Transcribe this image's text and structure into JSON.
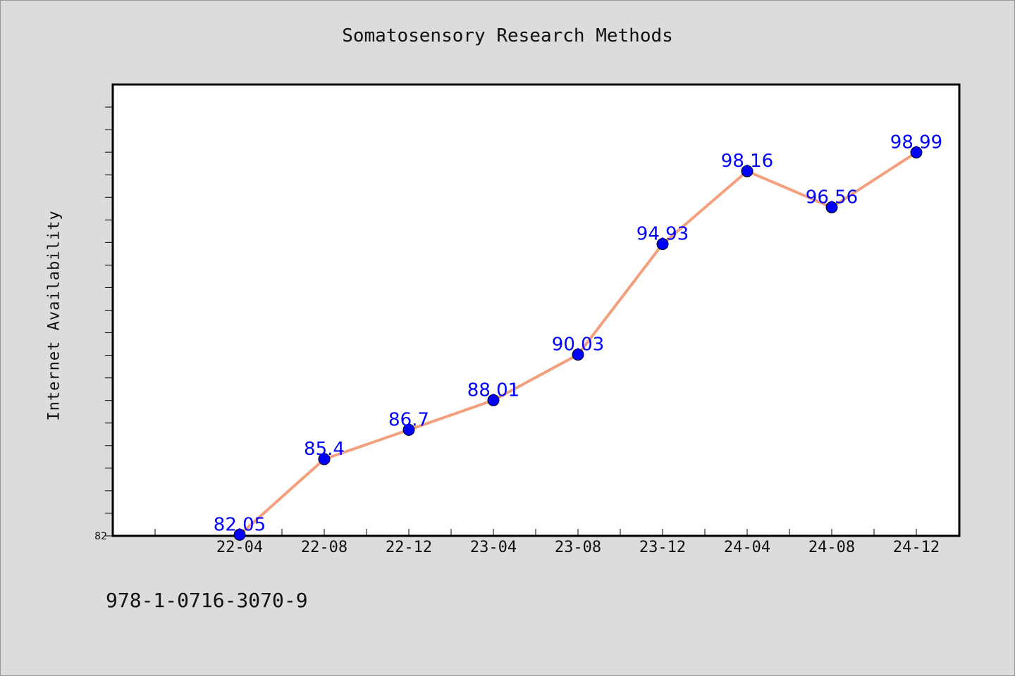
{
  "chart_data": {
    "type": "line",
    "title": "Somatosensory Research Methods",
    "xlabel": "",
    "ylabel": "Internet Availability",
    "categories": [
      "22-04",
      "22-08",
      "22-12",
      "23-04",
      "23-08",
      "23-12",
      "24-04",
      "24-08",
      "24-12"
    ],
    "series": [
      {
        "values": [
          82.05,
          85.4,
          86.7,
          88.01,
          90.03,
          94.93,
          98.16,
          96.56,
          98.99
        ],
        "labels": [
          "82.05",
          "85.4",
          "86.7",
          "88.01",
          "90.03",
          "94.93",
          "98.16",
          "96.56",
          "98.99"
        ],
        "line_color": "#f4a07e",
        "marker_color": "#0000ff"
      }
    ],
    "y_tick_labels": [
      "82"
    ],
    "ylim": [
      82,
      102
    ],
    "grid": false,
    "legend": "none",
    "data_label_color": "#0000ff"
  },
  "footer": {
    "code": "978-1-0716-3070-9"
  }
}
